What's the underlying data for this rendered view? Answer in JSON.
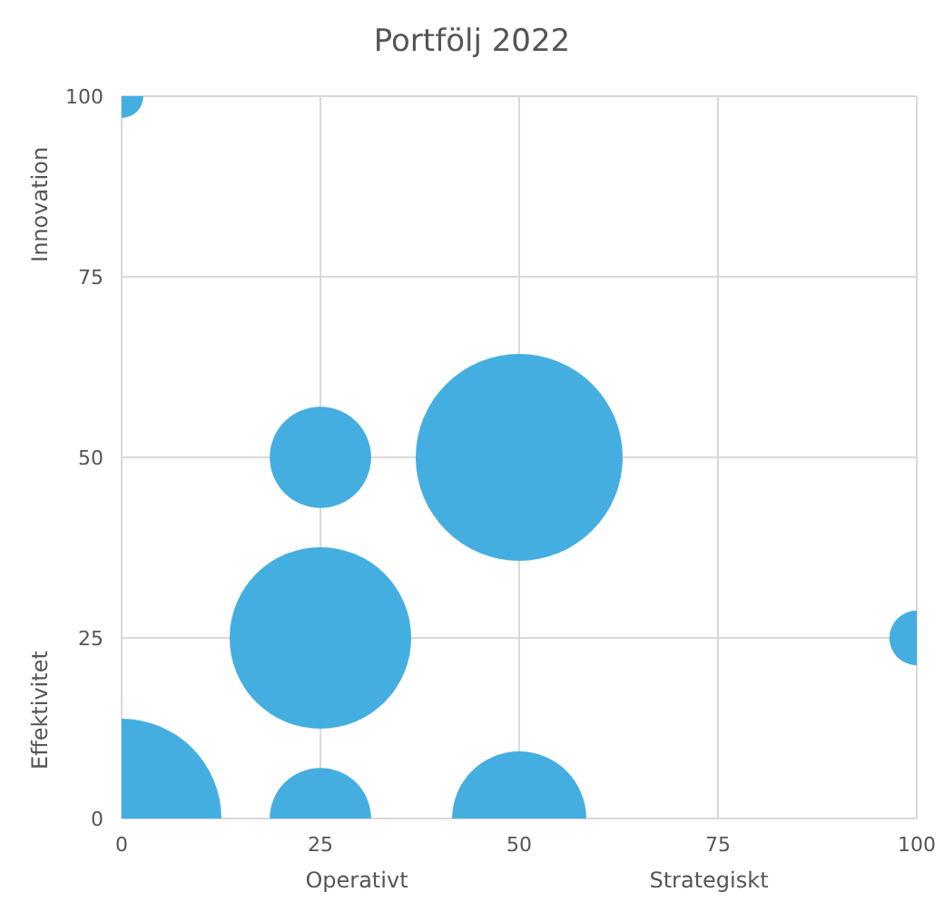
{
  "chart_data": {
    "type": "bubble",
    "title": "Portfölj 2022",
    "xlabel": "Operativt",
    "ylabel": "Effektivitet",
    "annotations": [
      "Strategiskt",
      "Innovation"
    ],
    "x": [
      0,
      25,
      50,
      25,
      0,
      25,
      50,
      100
    ],
    "values": [
      100,
      50,
      50,
      25,
      0,
      0,
      0,
      25
    ],
    "sizes": [
      0.044,
      0.24,
      1,
      0.77,
      0.93,
      0.24,
      0.42,
      0.07
    ],
    "color": "#41acdf",
    "xlim": [
      0,
      100
    ],
    "ylim": [
      0,
      100
    ],
    "xticks": [
      0,
      25,
      50,
      75,
      100
    ],
    "yticks": [
      0,
      25,
      50,
      75,
      100
    ],
    "grid": true
  }
}
